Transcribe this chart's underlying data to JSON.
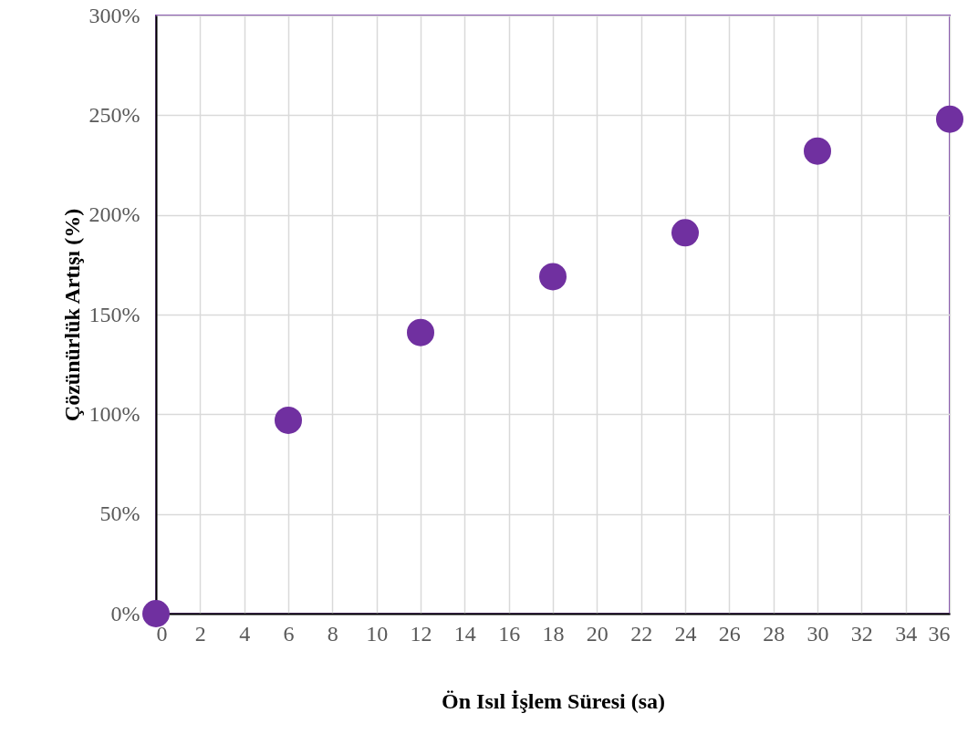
{
  "chart_data": {
    "type": "scatter",
    "xlabel": "Ön Isıl İşlem Süresi (sa)",
    "ylabel": "Çözünürlük Artışı (%)",
    "x": [
      0,
      6,
      12,
      18,
      24,
      30,
      36
    ],
    "series": [
      {
        "color": "#7030a0",
        "values": [
          0,
          97,
          141,
          169,
          191,
          232,
          248
        ]
      }
    ],
    "xlim": [
      0,
      36
    ],
    "xticks": [
      0,
      2,
      4,
      6,
      8,
      10,
      12,
      14,
      16,
      18,
      20,
      22,
      24,
      26,
      28,
      30,
      32,
      34,
      36
    ],
    "ylim": [
      0,
      300
    ],
    "yticks": [
      {
        "value": 0,
        "label": "0%"
      },
      {
        "value": 50,
        "label": "50%"
      },
      {
        "value": 100,
        "label": "100%"
      },
      {
        "value": 150,
        "label": "150%"
      },
      {
        "value": 200,
        "label": "200%"
      },
      {
        "value": 250,
        "label": "250%"
      },
      {
        "value": 300,
        "label": "300%"
      }
    ],
    "grid": true,
    "marker": "circle"
  }
}
